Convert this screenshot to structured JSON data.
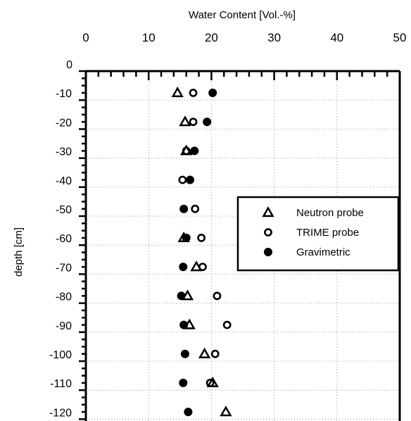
{
  "chart_data": {
    "type": "scatter",
    "title": "",
    "xlabel": "Water Content [Vol.-%]",
    "ylabel": "depth  [cm]",
    "xlim": [
      0,
      50
    ],
    "ylim": [
      0,
      -125
    ],
    "x_axis_position": "top",
    "x_ticks": [
      "0",
      "10",
      "20",
      "30",
      "40",
      "50"
    ],
    "y_ticks": [
      "0",
      "-10",
      "-20",
      "-30",
      "-40",
      "-50",
      "-60",
      "-70",
      "-80",
      "-90",
      "-100",
      "-110",
      "-120"
    ],
    "grid": true,
    "legend_position": "right",
    "series": [
      {
        "name": "Neutron probe",
        "marker": "triangle",
        "points": [
          {
            "x": 14.6,
            "y": -7.5
          },
          {
            "x": 15.8,
            "y": -17.5
          },
          {
            "x": 16.0,
            "y": -27.5
          },
          {
            "x": 15.6,
            "y": -57.5
          },
          {
            "x": 17.6,
            "y": -67.5
          },
          {
            "x": 16.2,
            "y": -77.5
          },
          {
            "x": 16.5,
            "y": -87.5
          },
          {
            "x": 18.9,
            "y": -97.5
          },
          {
            "x": 20.2,
            "y": -107.5
          },
          {
            "x": 22.3,
            "y": -117.5
          }
        ]
      },
      {
        "name": "TRIME probe",
        "marker": "open-circle",
        "points": [
          {
            "x": 17.1,
            "y": -7.5
          },
          {
            "x": 17.1,
            "y": -17.5
          },
          {
            "x": 16.0,
            "y": -27.5
          },
          {
            "x": 15.4,
            "y": -37.5
          },
          {
            "x": 17.4,
            "y": -47.5
          },
          {
            "x": 18.4,
            "y": -57.5
          },
          {
            "x": 18.6,
            "y": -67.5
          },
          {
            "x": 20.9,
            "y": -77.5
          },
          {
            "x": 22.5,
            "y": -87.5
          },
          {
            "x": 20.6,
            "y": -97.5
          },
          {
            "x": 19.8,
            "y": -107.5
          }
        ]
      },
      {
        "name": "Gravimetric",
        "marker": "filled-circle",
        "points": [
          {
            "x": 20.2,
            "y": -7.5
          },
          {
            "x": 19.3,
            "y": -17.5
          },
          {
            "x": 17.3,
            "y": -27.5
          },
          {
            "x": 16.6,
            "y": -37.5
          },
          {
            "x": 15.6,
            "y": -47.5
          },
          {
            "x": 16.0,
            "y": -57.5
          },
          {
            "x": 15.5,
            "y": -67.5
          },
          {
            "x": 15.2,
            "y": -77.5
          },
          {
            "x": 15.6,
            "y": -87.5
          },
          {
            "x": 15.8,
            "y": -97.5
          },
          {
            "x": 15.5,
            "y": -107.5
          },
          {
            "x": 16.3,
            "y": -117.5
          }
        ]
      }
    ]
  },
  "colors": {
    "axis": "#000000",
    "grid": "#999999",
    "background": "#ffffff"
  }
}
